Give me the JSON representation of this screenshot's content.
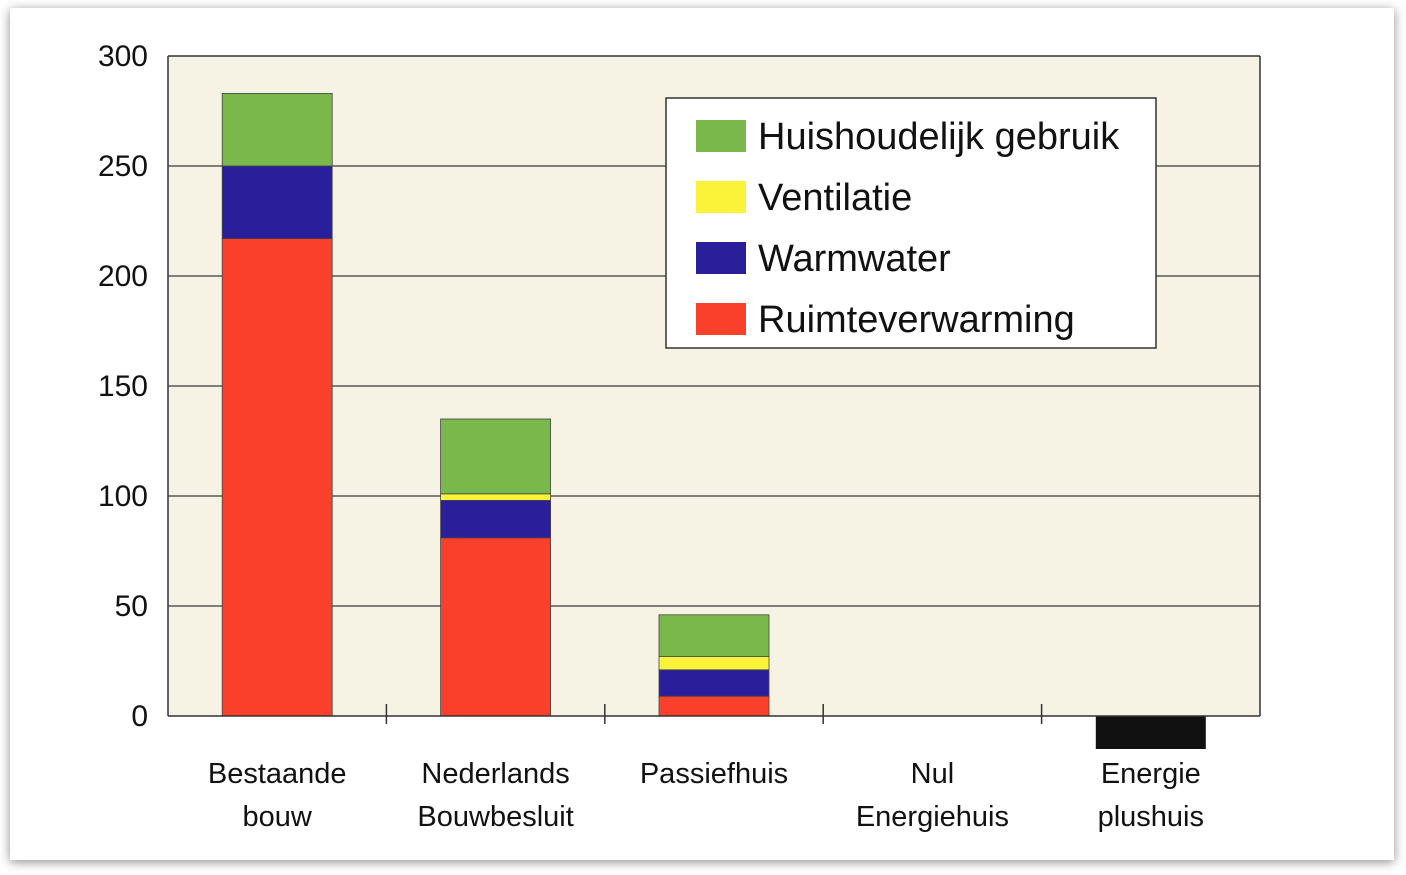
{
  "chart_data": {
    "type": "bar",
    "stacked": true,
    "categories": [
      [
        "Bestaande",
        "bouw"
      ],
      [
        "Nederlands",
        "Bouwbesluit"
      ],
      [
        "Passiefhuis"
      ],
      [
        "Nul",
        "Energiehuis"
      ],
      [
        "Energie",
        "plushuis"
      ]
    ],
    "series": [
      {
        "name": "Ruimteverwarming",
        "color": "#f8402a",
        "values": [
          217,
          81,
          9,
          0,
          0
        ]
      },
      {
        "name": "Warmwater",
        "color": "#2a1f9a",
        "values": [
          33,
          17,
          12,
          0,
          0
        ]
      },
      {
        "name": "Ventilatie",
        "color": "#fbf33a",
        "values": [
          0,
          3,
          6,
          0,
          0
        ]
      },
      {
        "name": "Huishoudelijk gebruik",
        "color": "#7bb84c",
        "values": [
          33,
          34,
          19,
          0,
          0
        ]
      }
    ],
    "net_negative": {
      "category_index": 4,
      "value": -15,
      "color": "#111111"
    },
    "legend": [
      "Huishoudelijk gebruik",
      "Ventilatie",
      "Warmwater",
      "Ruimteverwarming"
    ],
    "y_ticks": [
      0,
      50,
      100,
      150,
      200,
      250,
      300
    ],
    "ylim": [
      -15,
      300
    ],
    "title": "",
    "xlabel": "",
    "ylabel": "",
    "grid": true,
    "legend_position": "top-right"
  }
}
